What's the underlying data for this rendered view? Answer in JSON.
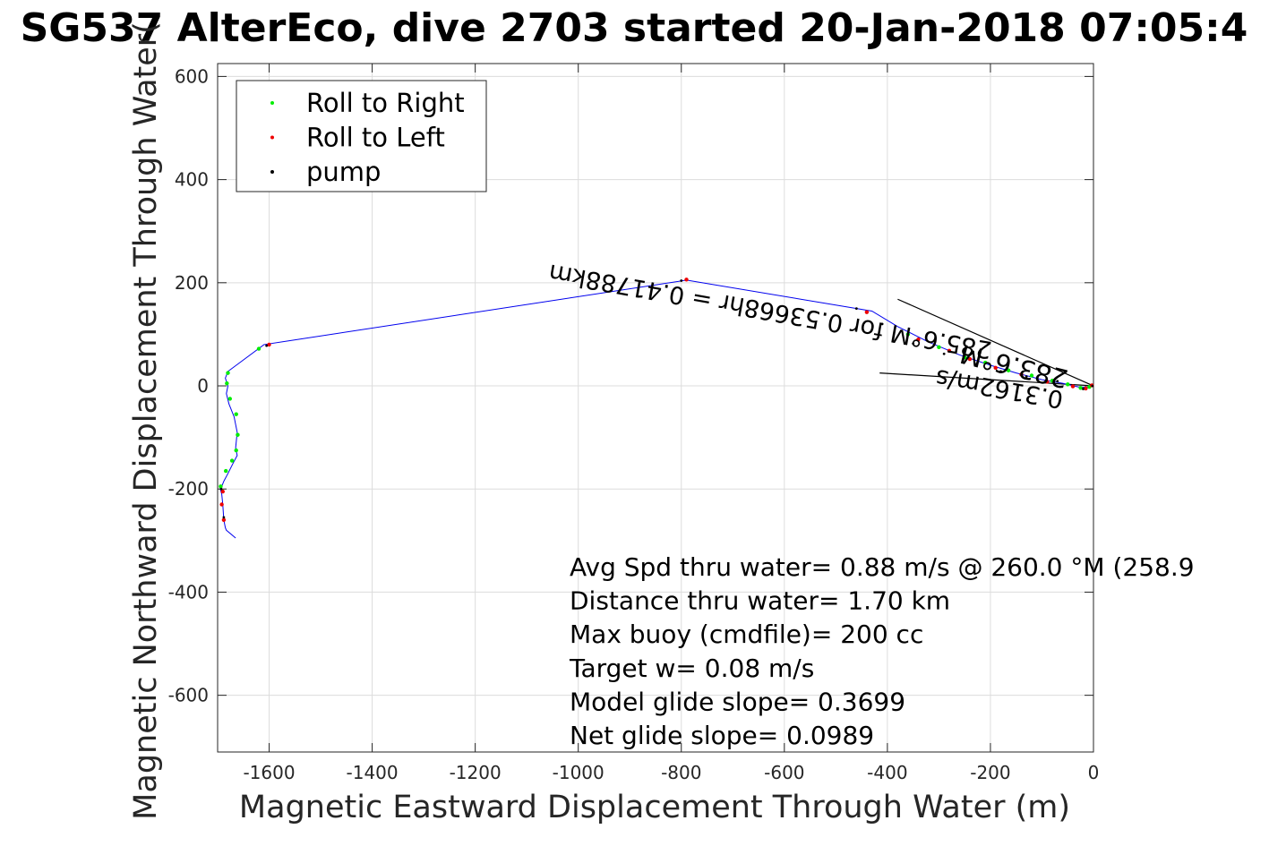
{
  "chart_data": {
    "type": "line",
    "title": "SG537 AlterEco, dive 2703 started 20-Jan-2018 07:05:4",
    "xlabel": "Magnetic Eastward Displacement Through Water (m)",
    "ylabel": "Magnetic Northward Displacement Through Water(",
    "xlim": [
      -1700,
      0
    ],
    "ylim": [
      -710,
      625
    ],
    "xticks": [
      -1600,
      -1400,
      -1200,
      -1000,
      -800,
      -600,
      -400,
      -200,
      0
    ],
    "yticks": [
      -600,
      -400,
      -200,
      0,
      200,
      400,
      600
    ],
    "grid": true,
    "legend_position": "top-left",
    "legend": [
      {
        "label": "Roll to Right",
        "color": "#00ee00"
      },
      {
        "label": "Roll to Left",
        "color": "#ee0000"
      },
      {
        "label": "pump",
        "color": "#000000"
      }
    ],
    "track": {
      "color": "#0000ee",
      "x": [
        0,
        -10,
        -30,
        -60,
        -100,
        -150,
        -200,
        -260,
        -320,
        -380,
        -430,
        -790,
        -1610,
        -1680,
        -1685,
        -1680,
        -1683,
        -1678,
        -1668,
        -1662,
        -1665,
        -1662,
        -1670,
        -1680,
        -1688,
        -1692,
        -1695,
        -1692,
        -1690,
        -1688,
        -1685,
        -1683,
        -1665
      ],
      "y": [
        0,
        -3,
        -2,
        5,
        12,
        25,
        40,
        60,
        85,
        115,
        145,
        205,
        80,
        28,
        15,
        0,
        -15,
        -35,
        -60,
        -90,
        -120,
        -135,
        -150,
        -170,
        -185,
        -195,
        -200,
        -210,
        -230,
        -260,
        -275,
        -280,
        -295
      ]
    },
    "roll_right": {
      "x": [
        -8,
        -25,
        -50,
        -80,
        -120,
        -165,
        -210,
        -250,
        -300,
        -360,
        -1620,
        -1680,
        -1682,
        -1676,
        -1664,
        -1661,
        -1664,
        -1672,
        -1684,
        -1694
      ],
      "y": [
        -2,
        -4,
        3,
        10,
        20,
        30,
        45,
        55,
        75,
        100,
        72,
        25,
        5,
        -25,
        -55,
        -95,
        -125,
        -145,
        -165,
        -195
      ]
    },
    "roll_left": {
      "x": [
        -3,
        -15,
        -40,
        -90,
        -140,
        -190,
        -240,
        -280,
        -340,
        -440,
        -790,
        -1600,
        -1690,
        -1692,
        -1688
      ],
      "y": [
        1,
        -5,
        -1,
        8,
        22,
        35,
        52,
        68,
        90,
        143,
        206,
        80,
        -205,
        -230,
        -260
      ]
    },
    "pump": {
      "x": [
        -2,
        -20,
        -70,
        -130,
        -180,
        -230,
        -290,
        -350,
        -410,
        -460,
        -800,
        -1605,
        -1693,
        -1688
      ],
      "y": [
        0,
        -6,
        9,
        18,
        28,
        42,
        62,
        82,
        120,
        150,
        204,
        78,
        -200,
        -255
      ]
    },
    "current_lines": [
      {
        "x": [
          0,
          -380
        ],
        "y": [
          0,
          168
        ]
      },
      {
        "x": [
          0,
          -415
        ],
        "y": [
          0,
          25
        ]
      }
    ],
    "rotated_labels": [
      {
        "text": "283.6°M",
        "x": -150,
        "y": 55,
        "angle": 194,
        "size": 29
      },
      {
        "text": "0.3162m/s",
        "x": -180,
        "y": 10,
        "angle": 190,
        "size": 27
      },
      {
        "text": "285.6°M for 0.53668hr = 0.41788km",
        "x": -625,
        "y": 160,
        "angle": 190,
        "size": 27
      }
    ],
    "annotations": [
      "Avg Spd thru water=  0.88 m/s @ 260.0 °M (258.9",
      "Distance thru water=  1.70 km",
      "Max buoy (cmdfile)= 200 cc",
      "Target w= 0.08 m/s",
      "Model glide slope= 0.3699",
      "Net glide slope= 0.0989"
    ]
  }
}
